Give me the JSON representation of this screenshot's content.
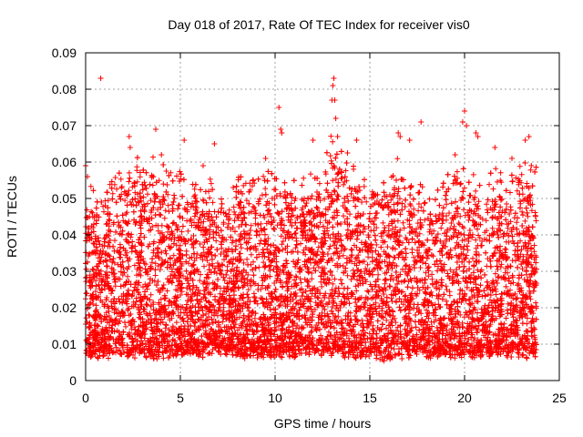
{
  "chart_data": {
    "type": "scatter",
    "title": "Day 018 of 2017, Rate Of TEC Index for receiver vis0",
    "xlabel": "GPS time / hours",
    "ylabel": "ROTI / TECUs",
    "xlim": [
      0,
      25
    ],
    "ylim": [
      0,
      0.09
    ],
    "x_ticks": [
      0,
      5,
      10,
      15,
      20,
      25
    ],
    "y_ticks": [
      0,
      0.01,
      0.02,
      0.03,
      0.04,
      0.05,
      0.06,
      0.07,
      0.08,
      0.09
    ],
    "x_tick_labels": [
      "0",
      "5",
      "10",
      "15",
      "20",
      "25"
    ],
    "y_tick_labels": [
      "0",
      "0.01",
      "0.02",
      "0.03",
      "0.04",
      "0.05",
      "0.06",
      "0.07",
      "0.08",
      "0.09"
    ],
    "grid": true,
    "marker": "+",
    "marker_color": "#ff0000",
    "data_range_x": [
      0,
      23.8
    ],
    "series": [
      {
        "x": [
          0.0,
          0.1,
          0.2,
          0.8,
          2.3,
          2.35,
          3.7,
          4.0,
          5.2,
          6.2,
          6.8,
          9.5,
          10.2,
          10.3,
          10.35,
          12.0,
          13.0,
          13.05,
          13.1,
          13.15,
          13.2,
          13.3,
          14.3,
          16.5,
          16.6,
          17.1,
          17.7,
          19.5,
          19.9,
          20.0,
          20.1,
          20.6,
          20.7,
          21.6,
          22.5,
          23.2,
          23.4
        ],
        "y": [
          0.059,
          0.056,
          0.045,
          0.083,
          0.067,
          0.064,
          0.069,
          0.062,
          0.066,
          0.059,
          0.065,
          0.061,
          0.075,
          0.069,
          0.068,
          0.066,
          0.077,
          0.081,
          0.083,
          0.077,
          0.072,
          0.067,
          0.066,
          0.068,
          0.067,
          0.066,
          0.071,
          0.062,
          0.071,
          0.074,
          0.07,
          0.068,
          0.067,
          0.064,
          0.061,
          0.066,
          0.067
        ]
      }
    ],
    "density_profile": {
      "x": [
        0,
        1,
        2,
        3,
        4,
        5,
        6,
        7,
        8,
        9,
        10,
        11,
        12,
        13,
        14,
        15,
        16,
        17,
        18,
        19,
        20,
        21,
        22,
        23,
        23.8
      ],
      "upper": [
        0.048,
        0.05,
        0.055,
        0.058,
        0.055,
        0.054,
        0.052,
        0.05,
        0.054,
        0.053,
        0.055,
        0.052,
        0.052,
        0.062,
        0.057,
        0.05,
        0.058,
        0.052,
        0.05,
        0.052,
        0.055,
        0.052,
        0.054,
        0.058,
        0.055
      ],
      "lower": [
        0.006,
        0.006,
        0.006,
        0.006,
        0.005,
        0.006,
        0.006,
        0.007,
        0.006,
        0.006,
        0.006,
        0.006,
        0.007,
        0.006,
        0.006,
        0.006,
        0.005,
        0.006,
        0.006,
        0.006,
        0.006,
        0.006,
        0.006,
        0.006,
        0.006
      ]
    }
  }
}
